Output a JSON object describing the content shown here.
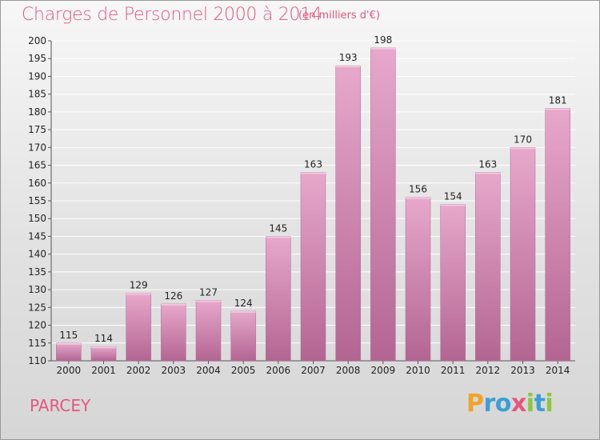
{
  "chart_data": {
    "type": "bar",
    "title": "Charges de Personnel 2000 à 2014",
    "subtitle": "(en milliers d'€)",
    "categories": [
      "2000",
      "2001",
      "2002",
      "2003",
      "2004",
      "2005",
      "2006",
      "2007",
      "2008",
      "2009",
      "2010",
      "2011",
      "2012",
      "2013",
      "2014"
    ],
    "values": [
      115,
      114,
      129,
      126,
      127,
      124,
      145,
      163,
      193,
      198,
      156,
      154,
      163,
      170,
      181
    ],
    "ylim": [
      110,
      200
    ],
    "yticks": [
      110,
      115,
      120,
      125,
      130,
      135,
      140,
      145,
      150,
      155,
      160,
      165,
      170,
      175,
      180,
      185,
      190,
      195,
      200
    ],
    "grid": true,
    "bar_color": "#c76b9e",
    "xlabel": "",
    "ylabel": ""
  },
  "footer": {
    "town": "PARCEY",
    "logo_letters": [
      {
        "ch": "P",
        "color": "#f0a326"
      },
      {
        "ch": "r",
        "color": "#3a9fd6"
      },
      {
        "ch": "o",
        "color": "#3a9fd6"
      },
      {
        "ch": "x",
        "color": "#e4567e"
      },
      {
        "ch": "i",
        "color": "#8cc63f"
      },
      {
        "ch": "t",
        "color": "#3a9fd6"
      },
      {
        "ch": "i",
        "color": "#8cc63f"
      }
    ]
  },
  "colors": {
    "accent": "#e4567e",
    "grid": "#ffffff"
  }
}
